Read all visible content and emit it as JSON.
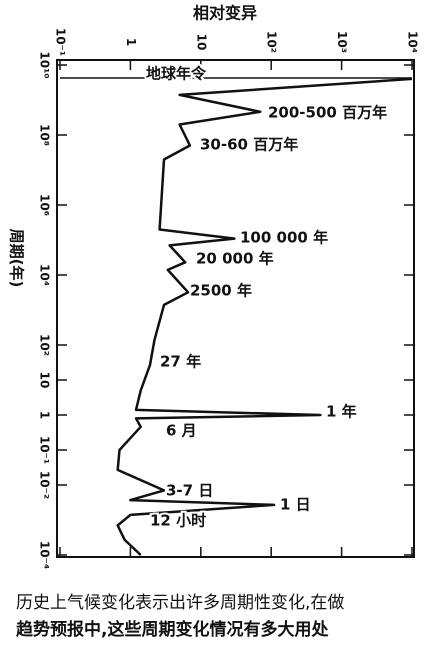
{
  "chart_data": {
    "type": "line",
    "title": "相对变异",
    "y_label": "周期(年)",
    "xscale": "log",
    "yscale": "log",
    "xlim": [
      0.1,
      10000
    ],
    "xticks": [
      {
        "value": 0.1,
        "label": "10⁻¹"
      },
      1,
      10,
      {
        "value": 100,
        "label": "10²"
      },
      {
        "value": 1000,
        "label": "10³"
      },
      {
        "value": 10000,
        "label": "10⁴"
      }
    ],
    "ylim": [
      0.0001,
      10000000000
    ],
    "yticks": [
      {
        "value": 10000000000,
        "label": "10¹⁰"
      },
      {
        "value": 100000000,
        "label": "10⁸"
      },
      {
        "value": 1000000,
        "label": "10⁶"
      },
      {
        "value": 10000,
        "label": "10⁴"
      },
      {
        "value": 100,
        "label": "10²"
      },
      10,
      1,
      {
        "value": 0.1,
        "label": "10⁻¹"
      },
      {
        "value": 0.01,
        "label": "10⁻²"
      },
      {
        "value": 0.0001,
        "label": "10⁻⁴"
      }
    ],
    "color": "#111111",
    "x": [
      10000,
      5,
      70,
      5,
      7,
      3,
      2.6,
      30,
      3.6,
      6,
      3.4,
      6.6,
      3,
      2.2,
      1.9,
      1.4,
      1.2,
      500,
      1.2,
      1.4,
      0.7,
      0.66,
      3,
      1,
      110,
      1,
      0.66,
      0.83,
      1.4
    ],
    "values": [
      4000000000,
      1400000000,
      460000000,
      200000000,
      50000000,
      20000000,
      200000,
      110000,
      70000,
      23000,
      14000,
      3200,
      1400,
      140,
      27,
      5,
      1.4,
      1,
      0.8,
      0.46,
      0.1,
      0.027,
      0.007,
      0.0037,
      0.0027,
      0.0014,
      0.0007,
      0.00027,
      0.0001
    ],
    "annotations": [
      "地球年令",
      "200-500 百万年",
      "30-60 百万年",
      "100 000 年",
      "20 000 年",
      "2500 年",
      "27 年",
      "1 年",
      "6 月",
      "3-7 日",
      "1 日",
      "12 小时"
    ]
  },
  "caption": [
    "历史上气候变化表示出许多周期性变化,在做",
    "趋势预报中,这些周期变化情况有多大用处"
  ]
}
